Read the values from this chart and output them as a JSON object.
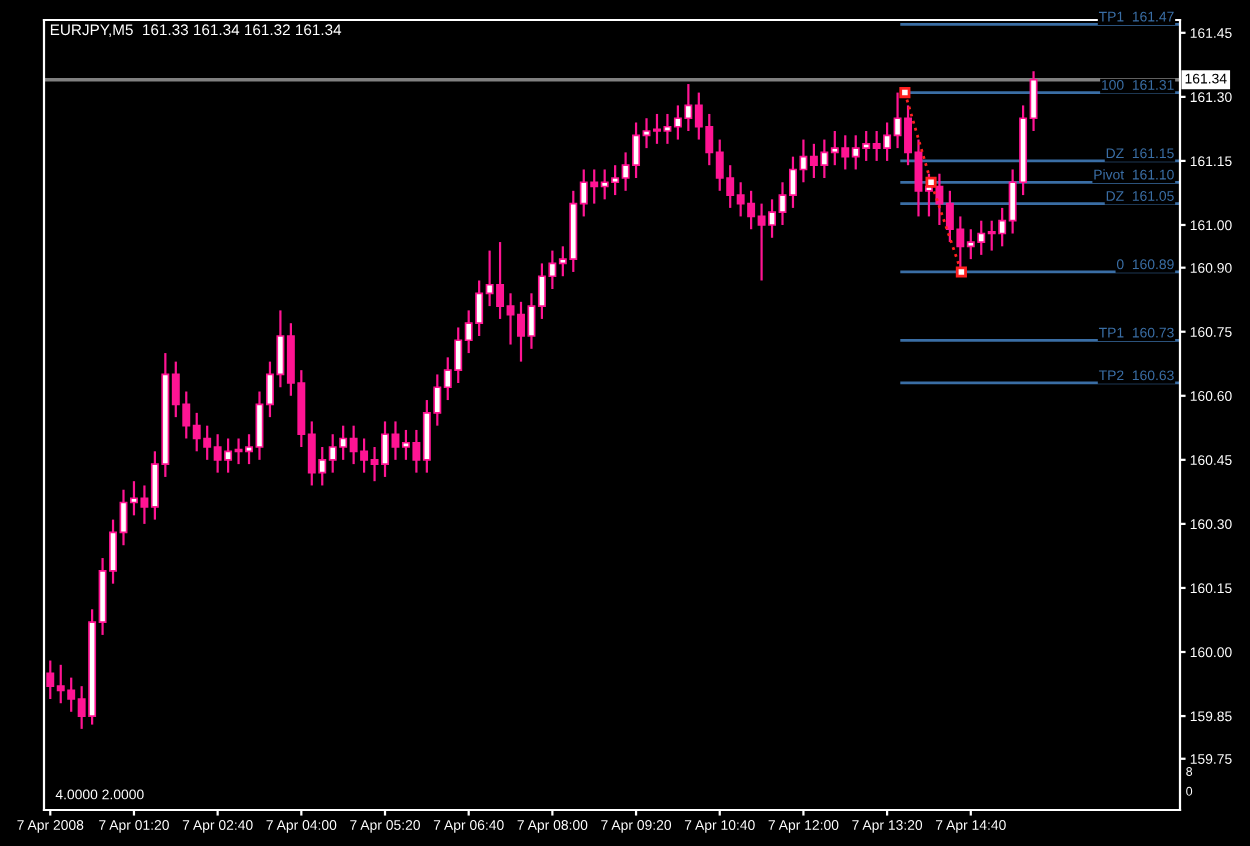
{
  "chart_data": {
    "type": "candlestick",
    "title": "EURJPY,M5  161.33 161.34 161.32 161.34",
    "color": "#ff1493",
    "x": [
      "2008-04-07T00:00",
      "2008-04-07T00:10",
      "2008-04-07T00:20",
      "2008-04-07T00:30",
      "2008-04-07T00:40",
      "2008-04-07T00:50",
      "2008-04-07T01:00",
      "2008-04-07T01:10",
      "2008-04-07T01:20",
      "2008-04-07T01:30",
      "2008-04-07T01:40",
      "2008-04-07T01:50",
      "2008-04-07T02:00",
      "2008-04-07T02:10",
      "2008-04-07T02:20",
      "2008-04-07T02:30",
      "2008-04-07T02:40",
      "2008-04-07T02:50",
      "2008-04-07T03:00",
      "2008-04-07T03:10",
      "2008-04-07T03:20",
      "2008-04-07T03:30",
      "2008-04-07T03:40",
      "2008-04-07T03:50",
      "2008-04-07T04:00",
      "2008-04-07T04:10",
      "2008-04-07T04:20",
      "2008-04-07T04:30",
      "2008-04-07T04:40",
      "2008-04-07T04:50",
      "2008-04-07T05:00",
      "2008-04-07T05:10",
      "2008-04-07T05:20",
      "2008-04-07T05:30",
      "2008-04-07T05:40",
      "2008-04-07T05:50",
      "2008-04-07T06:00",
      "2008-04-07T06:10",
      "2008-04-07T06:20",
      "2008-04-07T06:30",
      "2008-04-07T06:40",
      "2008-04-07T06:50",
      "2008-04-07T07:00",
      "2008-04-07T07:10",
      "2008-04-07T07:20",
      "2008-04-07T07:30",
      "2008-04-07T07:40",
      "2008-04-07T07:50",
      "2008-04-07T08:00",
      "2008-04-07T08:10",
      "2008-04-07T08:20",
      "2008-04-07T08:30",
      "2008-04-07T08:40",
      "2008-04-07T08:50",
      "2008-04-07T09:00",
      "2008-04-07T09:10",
      "2008-04-07T09:20",
      "2008-04-07T09:30",
      "2008-04-07T09:40",
      "2008-04-07T09:50",
      "2008-04-07T10:00",
      "2008-04-07T10:10",
      "2008-04-07T10:20",
      "2008-04-07T10:30",
      "2008-04-07T10:40",
      "2008-04-07T10:50",
      "2008-04-07T11:00",
      "2008-04-07T11:10",
      "2008-04-07T11:20",
      "2008-04-07T11:30",
      "2008-04-07T11:40",
      "2008-04-07T11:50",
      "2008-04-07T12:00",
      "2008-04-07T12:10",
      "2008-04-07T12:20",
      "2008-04-07T12:30",
      "2008-04-07T12:40",
      "2008-04-07T12:50",
      "2008-04-07T13:00",
      "2008-04-07T13:10",
      "2008-04-07T13:20",
      "2008-04-07T13:30",
      "2008-04-07T13:40",
      "2008-04-07T13:50",
      "2008-04-07T14:00",
      "2008-04-07T14:10",
      "2008-04-07T14:20",
      "2008-04-07T14:30",
      "2008-04-07T14:40",
      "2008-04-07T14:50",
      "2008-04-07T15:00",
      "2008-04-07T15:10",
      "2008-04-07T15:20",
      "2008-04-07T15:30",
      "2008-04-07T15:40"
    ],
    "ohlc": [
      [
        159.95,
        159.98,
        159.89,
        159.92
      ],
      [
        159.92,
        159.97,
        159.88,
        159.91
      ],
      [
        159.91,
        159.94,
        159.86,
        159.89
      ],
      [
        159.89,
        159.92,
        159.82,
        159.85
      ],
      [
        159.85,
        160.1,
        159.83,
        160.07
      ],
      [
        160.07,
        160.22,
        160.04,
        160.19
      ],
      [
        160.19,
        160.31,
        160.16,
        160.28
      ],
      [
        160.28,
        160.38,
        160.25,
        160.35
      ],
      [
        160.35,
        160.4,
        160.32,
        160.36
      ],
      [
        160.36,
        160.39,
        160.3,
        160.34
      ],
      [
        160.34,
        160.47,
        160.31,
        160.44
      ],
      [
        160.44,
        160.7,
        160.41,
        160.65
      ],
      [
        160.65,
        160.68,
        160.55,
        160.58
      ],
      [
        160.58,
        160.61,
        160.5,
        160.53
      ],
      [
        160.53,
        160.56,
        160.47,
        160.5
      ],
      [
        160.5,
        160.53,
        160.45,
        160.48
      ],
      [
        160.48,
        160.51,
        160.42,
        160.45
      ],
      [
        160.45,
        160.5,
        160.42,
        160.47
      ],
      [
        160.47,
        160.5,
        160.44,
        160.47
      ],
      [
        160.47,
        160.51,
        160.44,
        160.48
      ],
      [
        160.48,
        160.61,
        160.45,
        160.58
      ],
      [
        160.58,
        160.68,
        160.55,
        160.65
      ],
      [
        160.65,
        160.8,
        160.62,
        160.74
      ],
      [
        160.74,
        160.77,
        160.6,
        160.63
      ],
      [
        160.63,
        160.66,
        160.48,
        160.51
      ],
      [
        160.51,
        160.54,
        160.39,
        160.42
      ],
      [
        160.42,
        160.48,
        160.39,
        160.45
      ],
      [
        160.45,
        160.51,
        160.42,
        160.48
      ],
      [
        160.48,
        160.53,
        160.45,
        160.5
      ],
      [
        160.5,
        160.53,
        160.44,
        160.47
      ],
      [
        160.47,
        160.5,
        160.42,
        160.45
      ],
      [
        160.45,
        160.48,
        160.4,
        160.44
      ],
      [
        160.44,
        160.54,
        160.41,
        160.51
      ],
      [
        160.51,
        160.54,
        160.45,
        160.48
      ],
      [
        160.48,
        160.52,
        160.45,
        160.49
      ],
      [
        160.49,
        160.52,
        160.42,
        160.45
      ],
      [
        160.45,
        160.59,
        160.42,
        160.56
      ],
      [
        160.56,
        160.65,
        160.53,
        160.62
      ],
      [
        160.62,
        160.69,
        160.59,
        160.66
      ],
      [
        160.66,
        160.76,
        160.63,
        160.73
      ],
      [
        160.73,
        160.8,
        160.7,
        160.77
      ],
      [
        160.77,
        160.87,
        160.74,
        160.84
      ],
      [
        160.84,
        160.94,
        160.81,
        160.86
      ],
      [
        160.86,
        160.96,
        160.78,
        160.81
      ],
      [
        160.81,
        160.84,
        160.72,
        160.79
      ],
      [
        160.79,
        160.82,
        160.68,
        160.74
      ],
      [
        160.74,
        160.84,
        160.71,
        160.81
      ],
      [
        160.81,
        160.91,
        160.78,
        160.88
      ],
      [
        160.88,
        160.94,
        160.85,
        160.91
      ],
      [
        160.91,
        160.95,
        160.88,
        160.92
      ],
      [
        160.92,
        161.08,
        160.89,
        161.05
      ],
      [
        161.05,
        161.13,
        161.02,
        161.1
      ],
      [
        161.1,
        161.13,
        161.05,
        161.09
      ],
      [
        161.09,
        161.13,
        161.06,
        161.1
      ],
      [
        161.1,
        161.14,
        161.07,
        161.11
      ],
      [
        161.11,
        161.17,
        161.08,
        161.14
      ],
      [
        161.14,
        161.24,
        161.11,
        161.21
      ],
      [
        161.21,
        161.25,
        161.18,
        161.22
      ],
      [
        161.22,
        161.26,
        161.19,
        161.22
      ],
      [
        161.22,
        161.26,
        161.19,
        161.23
      ],
      [
        161.23,
        161.28,
        161.2,
        161.25
      ],
      [
        161.25,
        161.33,
        161.22,
        161.28
      ],
      [
        161.28,
        161.31,
        161.2,
        161.23
      ],
      [
        161.23,
        161.26,
        161.14,
        161.17
      ],
      [
        161.17,
        161.2,
        161.08,
        161.11
      ],
      [
        161.11,
        161.14,
        161.04,
        161.07
      ],
      [
        161.07,
        161.1,
        161.02,
        161.05
      ],
      [
        161.05,
        161.08,
        160.99,
        161.02
      ],
      [
        161.02,
        161.05,
        160.87,
        161.0
      ],
      [
        161.0,
        161.06,
        160.97,
        161.03
      ],
      [
        161.03,
        161.1,
        161.0,
        161.07
      ],
      [
        161.07,
        161.16,
        161.04,
        161.13
      ],
      [
        161.13,
        161.2,
        161.1,
        161.16
      ],
      [
        161.16,
        161.19,
        161.11,
        161.14
      ],
      [
        161.14,
        161.2,
        161.11,
        161.17
      ],
      [
        161.17,
        161.22,
        161.14,
        161.18
      ],
      [
        161.18,
        161.21,
        161.13,
        161.16
      ],
      [
        161.16,
        161.21,
        161.13,
        161.18
      ],
      [
        161.18,
        161.22,
        161.15,
        161.19
      ],
      [
        161.19,
        161.22,
        161.15,
        161.18
      ],
      [
        161.18,
        161.24,
        161.15,
        161.21
      ],
      [
        161.21,
        161.31,
        161.18,
        161.25
      ],
      [
        161.25,
        161.28,
        161.14,
        161.17
      ],
      [
        161.17,
        161.2,
        161.02,
        161.08
      ],
      [
        161.08,
        161.12,
        161.02,
        161.09
      ],
      [
        161.09,
        161.12,
        161.0,
        161.05
      ],
      [
        161.05,
        161.08,
        160.96,
        160.99
      ],
      [
        160.99,
        161.02,
        160.89,
        160.95
      ],
      [
        160.95,
        160.99,
        160.92,
        160.96
      ],
      [
        160.96,
        161.01,
        160.93,
        160.98
      ],
      [
        160.98,
        161.01,
        160.94,
        160.98
      ],
      [
        160.98,
        161.04,
        160.95,
        161.01
      ],
      [
        161.01,
        161.13,
        160.98,
        161.1
      ],
      [
        161.1,
        161.28,
        161.07,
        161.25
      ],
      [
        161.25,
        161.36,
        161.22,
        161.34
      ]
    ],
    "series": [
      {
        "type": "line",
        "color": "#ff2020",
        "x": [
          "2008-04-07T13:37",
          "2008-04-07T14:02",
          "2008-04-07T14:31"
        ],
        "values": [
          161.31,
          161.1,
          160.89
        ],
        "marker": "square",
        "line_style": "dotted"
      }
    ],
    "xlim": [
      "2008-04-06T23:54",
      "2008-04-07T18:00"
    ],
    "ylim": [
      159.63,
      161.48
    ],
    "xticks": [
      {
        "value": "2008-04-07T00:00",
        "label": "7 Apr 2008"
      },
      {
        "value": "2008-04-07T01:20",
        "label": "7 Apr 01:20"
      },
      {
        "value": "2008-04-07T02:40",
        "label": "7 Apr 02:40"
      },
      {
        "value": "2008-04-07T04:00",
        "label": "7 Apr 04:00"
      },
      {
        "value": "2008-04-07T05:20",
        "label": "7 Apr 05:20"
      },
      {
        "value": "2008-04-07T06:40",
        "label": "7 Apr 06:40"
      },
      {
        "value": "2008-04-07T08:00",
        "label": "7 Apr 08:00"
      },
      {
        "value": "2008-04-07T09:20",
        "label": "7 Apr 09:20"
      },
      {
        "value": "2008-04-07T10:40",
        "label": "7 Apr 10:40"
      },
      {
        "value": "2008-04-07T12:00",
        "label": "7 Apr 12:00"
      },
      {
        "value": "2008-04-07T13:20",
        "label": "7 Apr 13:20"
      },
      {
        "value": "2008-04-07T14:40",
        "label": "7 Apr 14:40"
      }
    ],
    "yticks": [
      {
        "value": 159.75,
        "label": "159.75"
      },
      {
        "value": 159.85,
        "label": "159.85"
      },
      {
        "value": 160.0,
        "label": "160.00"
      },
      {
        "value": 160.15,
        "label": "160.15"
      },
      {
        "value": 160.3,
        "label": "160.30"
      },
      {
        "value": 160.45,
        "label": "160.45"
      },
      {
        "value": 160.6,
        "label": "160.60"
      },
      {
        "value": 160.75,
        "label": "160.75"
      },
      {
        "value": 160.9,
        "label": "160.90"
      },
      {
        "value": 161.0,
        "label": "161.00"
      },
      {
        "value": 161.15,
        "label": "161.15"
      },
      {
        "value": 161.3,
        "label": "161.30"
      },
      {
        "value": 161.45,
        "label": "161.45"
      }
    ],
    "ref_lines": [
      {
        "axis": "y",
        "value": 161.34,
        "label": "161.34",
        "color": "#808080",
        "line_style": "solid"
      },
      {
        "axis": "y",
        "value": 161.47,
        "label": "TP1  161.47",
        "color": "#3a6ea5",
        "line_style": "solid"
      },
      {
        "axis": "y",
        "value": 161.31,
        "label": "100  161.31",
        "color": "#3a6ea5",
        "line_style": "solid"
      },
      {
        "axis": "y",
        "value": 161.15,
        "label": "DZ  161.15",
        "color": "#3a6ea5",
        "line_style": "solid"
      },
      {
        "axis": "y",
        "value": 161.1,
        "label": "Pivot  161.10",
        "color": "#3a6ea5",
        "line_style": "solid"
      },
      {
        "axis": "y",
        "value": 161.05,
        "label": "DZ  161.05",
        "color": "#3a6ea5",
        "line_style": "solid"
      },
      {
        "axis": "y",
        "value": 160.89,
        "label": "0  160.89",
        "color": "#3a6ea5",
        "line_style": "solid"
      },
      {
        "axis": "y",
        "value": 160.73,
        "label": "TP1  160.73",
        "color": "#3a6ea5",
        "line_style": "solid"
      },
      {
        "axis": "y",
        "value": 160.63,
        "label": "TP2  160.63",
        "color": "#3a6ea5",
        "line_style": "solid"
      }
    ],
    "annotations": [
      "4.0000 2.0000",
      "8",
      "0"
    ],
    "grid": false,
    "legend": false
  }
}
